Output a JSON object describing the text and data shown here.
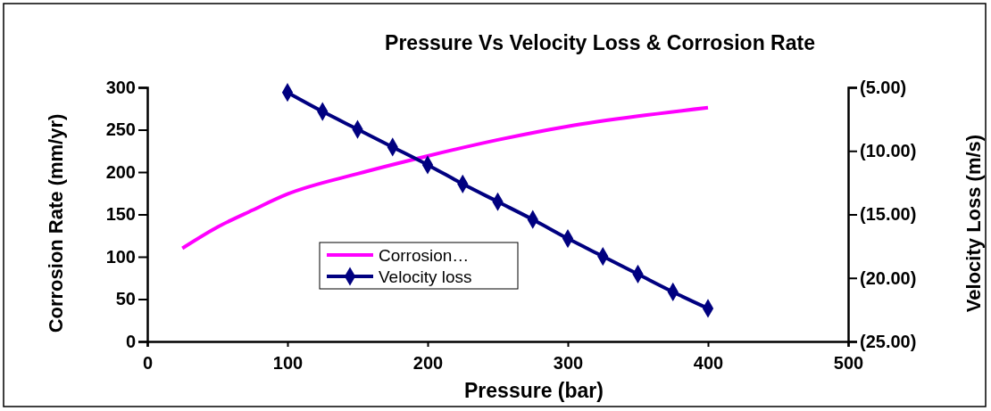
{
  "chart_data": {
    "type": "line",
    "title": "Pressure Vs Velocity Loss & Corrosion Rate",
    "xlabel": "Pressure (bar)",
    "ylabel": "Corrosion Rate (mm/yr)",
    "y2label": "Velocity Loss (m/s)",
    "xlim": [
      0,
      500
    ],
    "xticks": [
      0,
      100,
      200,
      300,
      400,
      500
    ],
    "ylim": [
      0,
      300
    ],
    "yticks": [
      0,
      50,
      100,
      150,
      200,
      250,
      300
    ],
    "y2lim": [
      -25,
      -5
    ],
    "y2ticks": [
      {
        "value": -25,
        "label": "(25.00)"
      },
      {
        "value": -20,
        "label": "(20.00)"
      },
      {
        "value": -15,
        "label": "(15.00)"
      },
      {
        "value": -10,
        "label": "(10.00)"
      },
      {
        "value": -5,
        "label": "(5.00)"
      }
    ],
    "grid": false,
    "legend": "left",
    "line_style": "solid",
    "series": [
      {
        "name": "Corrosion…",
        "color": "#ff00ff",
        "marker": "none",
        "x": [
          25,
          50,
          75,
          100,
          150,
          200,
          250,
          300,
          350,
          400
        ],
        "values": [
          110,
          135,
          155,
          174,
          198,
          219,
          238,
          254,
          266,
          276
        ]
      },
      {
        "name": "Velocity loss",
        "color": "#000080",
        "marker": "diamond",
        "axis": "y2",
        "x": [
          100,
          125,
          150,
          175,
          200,
          225,
          250,
          275,
          300,
          325,
          350,
          375,
          400
        ],
        "values": [
          -5.4,
          -6.9,
          -8.3,
          -9.7,
          -11.1,
          -12.6,
          -14.0,
          -15.4,
          -16.9,
          -18.3,
          -19.7,
          -21.1,
          -22.4
        ]
      }
    ]
  }
}
